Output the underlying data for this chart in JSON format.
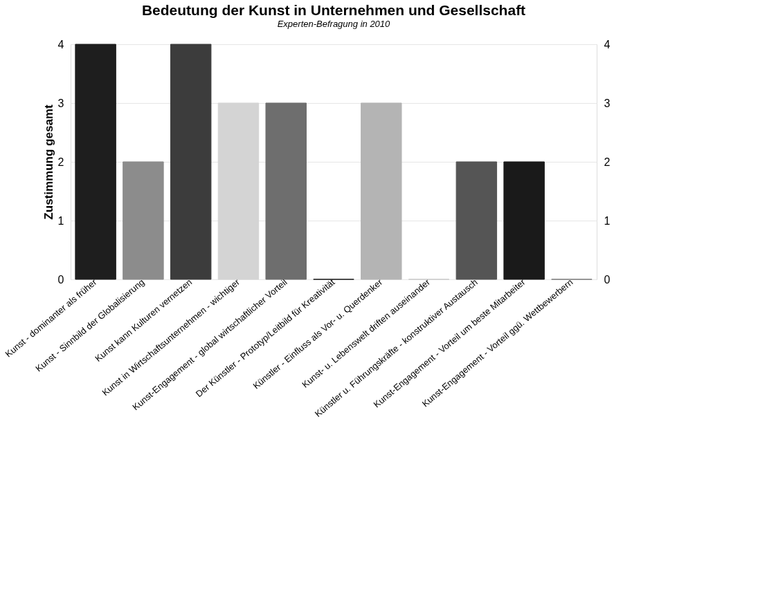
{
  "chart_data": {
    "type": "bar",
    "title": "Bedeutung der Kunst in Unternehmen und Gesellschaft",
    "subtitle": "Experten-Befragung in 2010",
    "ylabel": "Zustimmung gesamt",
    "categories": [
      "Kunst - dominanter als früher",
      "Kunst - Sinnbild der Globalisierung",
      "Kunst kann Kulturen vernetzen",
      "Kunst in Wirtschaftsunternehmen - wichtiger",
      "Kunst-Engagement - global wirtschaftlicher Vorteil",
      "Der Künstler - Prototyp/Leitbild für Kreativität",
      "Künstler - Einfluss als Vor- u. Querdenker",
      "Kunst- u. Lebenswelt driften auseinander",
      "Künstler u. Führungskräfte - konstruktiver Austausch",
      "Kunst-Engagement - Vorteil um beste Mitarbeiter",
      "Kunst-Engagement - Vorteil ggü. Wettbewerbern"
    ],
    "values": [
      4,
      2,
      4,
      3,
      3,
      0,
      3,
      0,
      2,
      2,
      0
    ],
    "colors": [
      "#1e1e1e",
      "#8c8c8c",
      "#3c3c3c",
      "#d4d4d4",
      "#6e6e6e",
      "#111111",
      "#b4b4b4",
      "#c8c8c8",
      "#555555",
      "#1a1a1a",
      "#777777"
    ],
    "ylim": [
      0,
      4
    ],
    "yticks": [
      0,
      1,
      2,
      3,
      4
    ],
    "y2lim": [
      0,
      4
    ],
    "y2ticks": [
      0,
      1,
      2,
      3,
      4
    ],
    "grid": "y"
  }
}
